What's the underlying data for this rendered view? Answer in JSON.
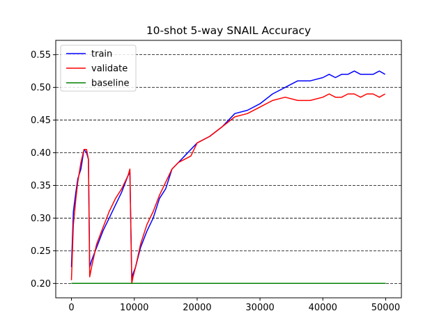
{
  "chart_data": {
    "type": "line",
    "title": "10-shot 5-way SNAIL Accuracy",
    "xlabel": "",
    "ylabel": "",
    "xlim": [
      -2500,
      52500
    ],
    "ylim": [
      0.178,
      0.572
    ],
    "xticks": [
      0,
      10000,
      20000,
      30000,
      40000,
      50000
    ],
    "yticks": [
      0.2,
      0.25,
      0.3,
      0.35,
      0.4,
      0.45,
      0.5,
      0.55
    ],
    "xtick_labels": [
      "0",
      "10000",
      "20000",
      "30000",
      "40000",
      "50000"
    ],
    "ytick_labels": [
      "0.20",
      "0.25",
      "0.30",
      "0.35",
      "0.40",
      "0.45",
      "0.50",
      "0.55"
    ],
    "grid": "horizontal dashed",
    "legend_position": "upper-left",
    "series": [
      {
        "name": "train",
        "color": "#0000ff",
        "x": [
          0,
          300,
          700,
          1000,
          1500,
          2000,
          2400,
          2700,
          2900,
          3200,
          4000,
          5000,
          6000,
          7000,
          8000,
          9000,
          9300,
          9600,
          9800,
          10200,
          11000,
          12000,
          13000,
          14000,
          15000,
          16000,
          17000,
          18000,
          19000,
          20000,
          22000,
          24000,
          26000,
          28000,
          30000,
          32000,
          34000,
          36000,
          38000,
          40000,
          41000,
          42000,
          43000,
          44000,
          45000,
          46000,
          47000,
          48000,
          49000,
          49900
        ],
        "y": [
          0.225,
          0.31,
          0.34,
          0.36,
          0.375,
          0.405,
          0.4,
          0.39,
          0.225,
          0.235,
          0.255,
          0.28,
          0.3,
          0.32,
          0.34,
          0.365,
          0.37,
          0.205,
          0.215,
          0.225,
          0.255,
          0.28,
          0.3,
          0.33,
          0.345,
          0.375,
          0.385,
          0.395,
          0.405,
          0.415,
          0.425,
          0.44,
          0.46,
          0.465,
          0.475,
          0.49,
          0.5,
          0.51,
          0.51,
          0.515,
          0.52,
          0.515,
          0.52,
          0.52,
          0.525,
          0.52,
          0.52,
          0.52,
          0.525,
          0.52
        ]
      },
      {
        "name": "validate",
        "color": "#ff0000",
        "x": [
          0,
          300,
          700,
          1000,
          1500,
          2000,
          2400,
          2700,
          2900,
          3200,
          4000,
          5000,
          6000,
          7000,
          8000,
          9000,
          9300,
          9600,
          9800,
          10200,
          11000,
          12000,
          13000,
          14000,
          15000,
          16000,
          17000,
          18000,
          19000,
          20000,
          22000,
          24000,
          26000,
          28000,
          30000,
          32000,
          34000,
          36000,
          38000,
          40000,
          41000,
          42000,
          43000,
          44000,
          45000,
          46000,
          47000,
          48000,
          49000,
          49900
        ],
        "y": [
          0.205,
          0.29,
          0.33,
          0.355,
          0.385,
          0.405,
          0.405,
          0.39,
          0.21,
          0.225,
          0.26,
          0.285,
          0.31,
          0.33,
          0.345,
          0.365,
          0.375,
          0.2,
          0.21,
          0.225,
          0.26,
          0.29,
          0.31,
          0.335,
          0.355,
          0.375,
          0.385,
          0.39,
          0.395,
          0.415,
          0.425,
          0.44,
          0.455,
          0.46,
          0.47,
          0.48,
          0.485,
          0.48,
          0.48,
          0.485,
          0.49,
          0.485,
          0.485,
          0.49,
          0.49,
          0.485,
          0.49,
          0.49,
          0.485,
          0.49
        ]
      },
      {
        "name": "baseline",
        "color": "#008000",
        "x": [
          0,
          50000
        ],
        "y": [
          0.2,
          0.2
        ]
      }
    ]
  }
}
